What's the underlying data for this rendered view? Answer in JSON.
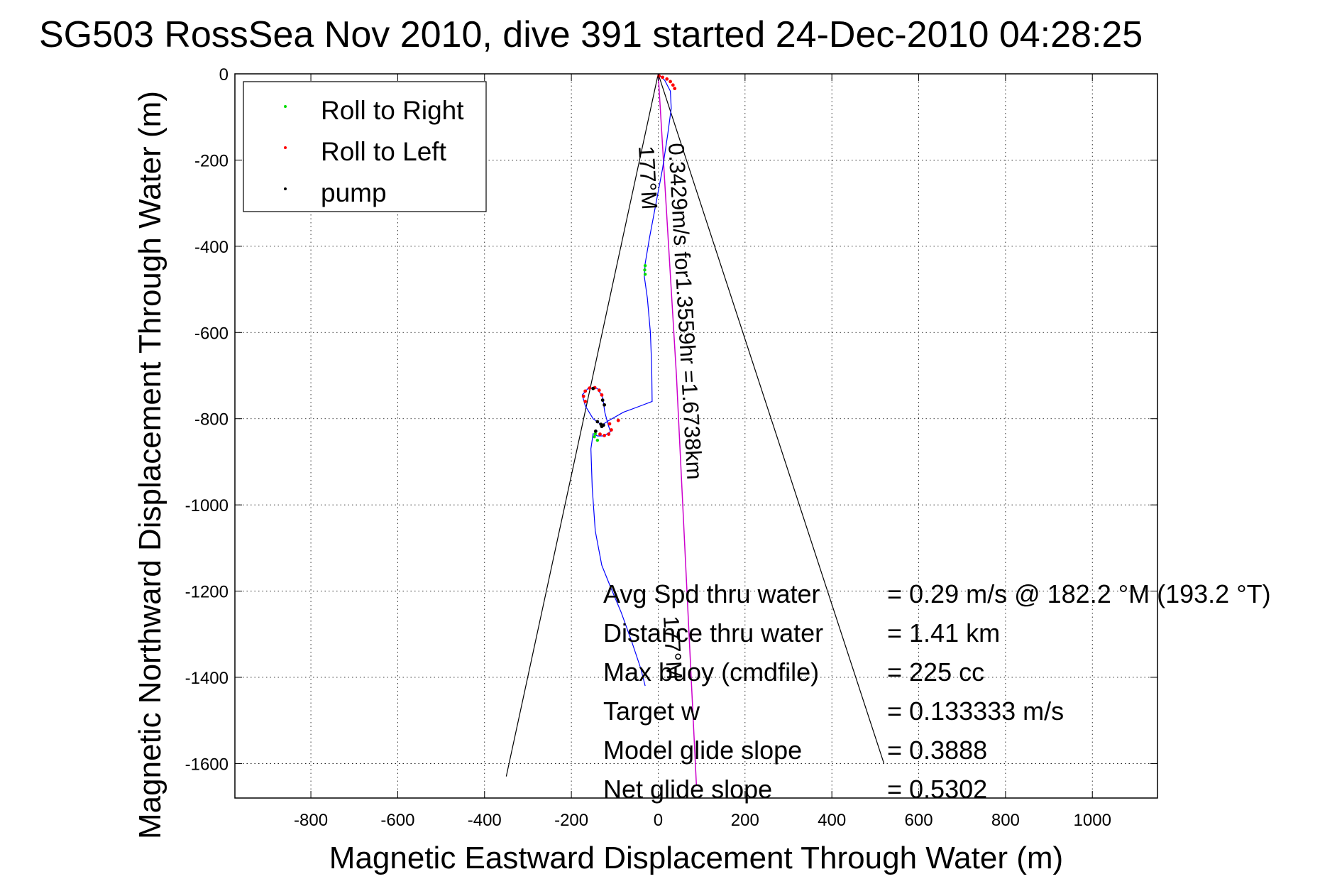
{
  "chart_data": {
    "type": "scatter",
    "title": "SG503 RossSea Nov 2010, dive 391 started 24-Dec-2010 04:28:25",
    "xlabel": "Magnetic Eastward Displacement Through Water (m)",
    "ylabel": "Magnetic Northward Displacement Through Water (m)",
    "xlim": [
      -975,
      1150
    ],
    "ylim": [
      -1680,
      0
    ],
    "xticks": [
      -800,
      -600,
      -400,
      -200,
      0,
      200,
      400,
      600,
      800,
      1000
    ],
    "yticks": [
      0,
      -200,
      -400,
      -600,
      -800,
      -1000,
      -1200,
      -1400,
      -1600
    ],
    "grid": true,
    "legend": {
      "position": "top-left",
      "entries": [
        {
          "label": "Roll to Right",
          "color": "#00dd00"
        },
        {
          "label": "Roll to Left",
          "color": "#ff0000"
        },
        {
          "label": "pump",
          "color": "#000000"
        }
      ]
    },
    "track": {
      "color": "#0000ff",
      "points": [
        [
          0,
          0
        ],
        [
          15,
          -15
        ],
        [
          28,
          -40
        ],
        [
          30,
          -80
        ],
        [
          22,
          -140
        ],
        [
          10,
          -220
        ],
        [
          -5,
          -300
        ],
        [
          -20,
          -380
        ],
        [
          -30,
          -440
        ],
        [
          -32,
          -470
        ],
        [
          -25,
          -520
        ],
        [
          -18,
          -600
        ],
        [
          -15,
          -680
        ],
        [
          -14,
          -760
        ],
        [
          -40,
          -770
        ],
        [
          -80,
          -785
        ],
        [
          -115,
          -805
        ],
        [
          -130,
          -815
        ],
        [
          -150,
          -800
        ],
        [
          -168,
          -770
        ],
        [
          -175,
          -745
        ],
        [
          -160,
          -728
        ],
        [
          -140,
          -730
        ],
        [
          -128,
          -750
        ],
        [
          -123,
          -785
        ],
        [
          -115,
          -815
        ],
        [
          -110,
          -830
        ],
        [
          -125,
          -840
        ],
        [
          -140,
          -840
        ],
        [
          -150,
          -835
        ],
        [
          -155,
          -870
        ],
        [
          -152,
          -960
        ],
        [
          -145,
          -1060
        ],
        [
          -130,
          -1140
        ],
        [
          -110,
          -1190
        ],
        [
          -85,
          -1250
        ],
        [
          -60,
          -1320
        ],
        [
          -40,
          -1380
        ],
        [
          -30,
          -1420
        ]
      ]
    },
    "roll_right_points": [
      [
        -30,
        -445
      ],
      [
        -31,
        -455
      ],
      [
        -30,
        -465
      ],
      [
        -145,
        -835
      ],
      [
        -147,
        -842
      ],
      [
        -140,
        -850
      ]
    ],
    "roll_left_points": [
      [
        2,
        -5
      ],
      [
        10,
        -8
      ],
      [
        20,
        -12
      ],
      [
        28,
        -18
      ],
      [
        34,
        -26
      ],
      [
        38,
        -34
      ],
      [
        -168,
        -760
      ],
      [
        -172,
        -748
      ],
      [
        -168,
        -736
      ],
      [
        -158,
        -729
      ],
      [
        -146,
        -728
      ],
      [
        -136,
        -734
      ],
      [
        -130,
        -745
      ],
      [
        -112,
        -812
      ],
      [
        -108,
        -826
      ],
      [
        -114,
        -836
      ],
      [
        -124,
        -839
      ],
      [
        -134,
        -836
      ],
      [
        -92,
        -804
      ]
    ],
    "pump_points": [
      [
        -140,
        -807
      ],
      [
        -132,
        -813
      ],
      [
        -126,
        -815
      ],
      [
        -130,
        -818
      ],
      [
        -128,
        -757
      ],
      [
        -124,
        -768
      ],
      [
        -150,
        -730
      ],
      [
        -144,
        -829
      ]
    ],
    "heading_line": {
      "color": "#cc00cc",
      "points": [
        [
          0,
          0
        ],
        [
          42,
          -700
        ],
        [
          88,
          -1650
        ]
      ],
      "label": "0.3429m/s for1.3559hr =1.6738km",
      "heading_label": "177°M"
    },
    "cone_lines": {
      "color": "#000000",
      "lines": [
        [
          [
            0,
            0
          ],
          [
            -350,
            -1630
          ]
        ],
        [
          [
            0,
            0
          ],
          [
            520,
            -1600
          ]
        ]
      ]
    },
    "heading_label_upper": "177°M",
    "stats": [
      {
        "label": "Avg Spd thru water",
        "value": "=  0.29 m/s @ 182.2 °M (193.2 °T)"
      },
      {
        "label": "Distance thru water",
        "value": "=  1.41 km"
      },
      {
        "label": "Max buoy (cmdfile)",
        "value": "= 225 cc"
      },
      {
        "label": "Target w",
        "value": "= 0.133333 m/s"
      },
      {
        "label": "Model glide slope",
        "value": "= 0.3888"
      },
      {
        "label": "Net glide slope",
        "value": "= 0.5302"
      }
    ]
  }
}
